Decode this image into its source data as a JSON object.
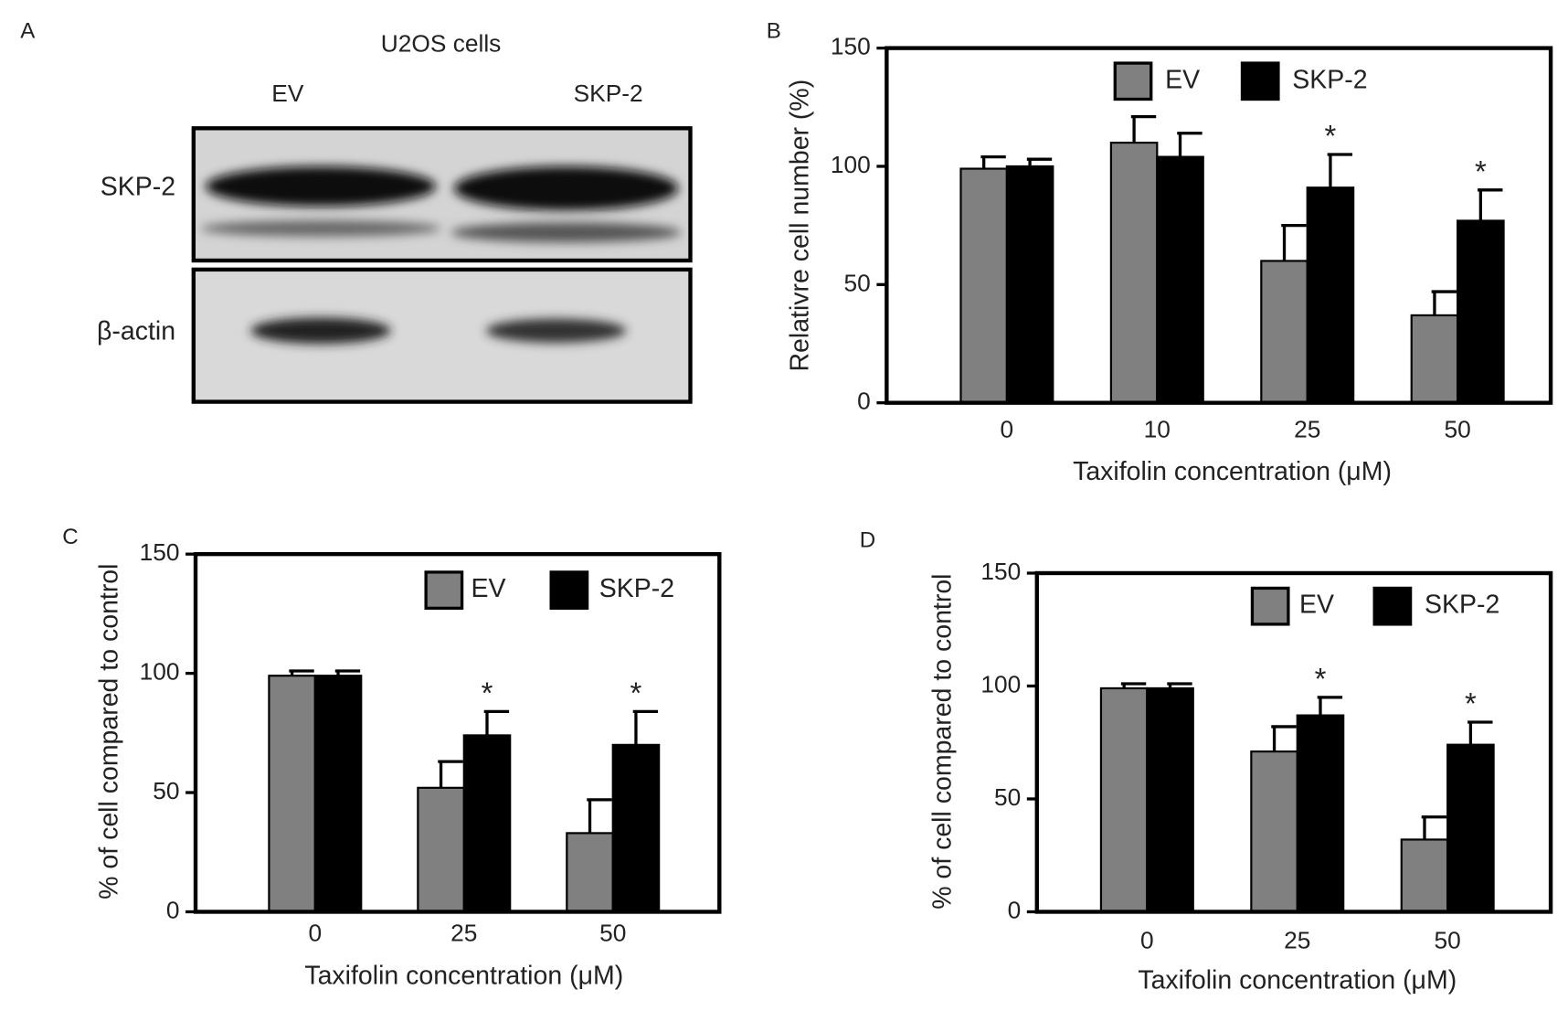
{
  "blot": {
    "label": "A",
    "title": "U2OS cells",
    "lanes": [
      "EV",
      "SKP-2"
    ],
    "rows": [
      "SKP-2",
      "β-actin"
    ]
  },
  "chart_data": [
    {
      "type": "bar",
      "panel": "B",
      "ylabel": "Relativre cell number (%)",
      "xlabel": "Taxifolin concentration (μM)",
      "categories": [
        "0",
        "10",
        "25",
        "50"
      ],
      "series": [
        {
          "name": "EV",
          "color": "#808080",
          "values": [
            99,
            110,
            60,
            37
          ],
          "errors": [
            5,
            11,
            15,
            10
          ]
        },
        {
          "name": "SKP-2",
          "color": "#000000",
          "values": [
            100,
            104,
            91,
            77
          ],
          "errors": [
            3,
            10,
            14,
            13
          ],
          "markers": [
            null,
            null,
            "*",
            "*"
          ]
        }
      ],
      "ylim": [
        0,
        150
      ],
      "yticks": [
        0,
        50,
        100,
        150
      ],
      "legend": "top"
    },
    {
      "type": "bar",
      "panel": "C",
      "ylabel": "% of cell compared to control",
      "xlabel": "Taxifolin concentration (μM)",
      "categories": [
        "0",
        "25",
        "50"
      ],
      "series": [
        {
          "name": "EV",
          "color": "#808080",
          "values": [
            99,
            52,
            33
          ],
          "errors": [
            2,
            11,
            14
          ]
        },
        {
          "name": "SKP-2",
          "color": "#000000",
          "values": [
            99,
            74,
            70
          ],
          "errors": [
            2,
            10,
            14
          ],
          "markers": [
            null,
            "*",
            "*"
          ]
        }
      ],
      "ylim": [
        0,
        150
      ],
      "yticks": [
        0,
        50,
        100,
        150
      ],
      "legend": "top"
    },
    {
      "type": "bar",
      "panel": "D",
      "ylabel": "% of cell compared to control",
      "xlabel": "Taxifolin concentration (μM)",
      "categories": [
        "0",
        "25",
        "50"
      ],
      "series": [
        {
          "name": "EV",
          "color": "#808080",
          "values": [
            99,
            71,
            32
          ],
          "errors": [
            2,
            11,
            10
          ]
        },
        {
          "name": "SKP-2",
          "color": "#000000",
          "values": [
            99,
            87,
            74
          ],
          "errors": [
            2,
            8,
            10
          ],
          "markers": [
            null,
            "*",
            "*"
          ]
        }
      ],
      "ylim": [
        0,
        150
      ],
      "yticks": [
        0,
        50,
        100,
        150
      ],
      "legend": "top"
    }
  ]
}
